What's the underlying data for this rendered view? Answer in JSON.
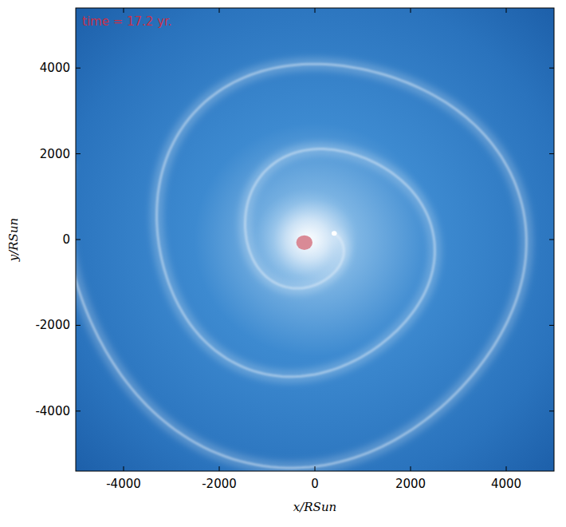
{
  "chart_data": {
    "type": "scatter",
    "annotation": "time = 17.2 yr.",
    "x_label": "x/RSun",
    "y_label": "y/RSun",
    "xlim": [
      -5000,
      5000
    ],
    "ylim": [
      -5400,
      5400
    ],
    "xticks": [
      -4000,
      -2000,
      0,
      2000,
      4000
    ],
    "yticks": [
      -4000,
      -2000,
      0,
      2000,
      4000
    ],
    "grid": false,
    "series": [
      {
        "color": "#d98a96",
        "marker": "circle",
        "x": [
          -220
        ],
        "values": [
          -70
        ],
        "sizes": [
          170
        ]
      },
      {
        "color": "#ffffff",
        "marker": "circle",
        "x": [
          404
        ],
        "values": [
          145
        ],
        "sizes": [
          55
        ]
      }
    ]
  }
}
